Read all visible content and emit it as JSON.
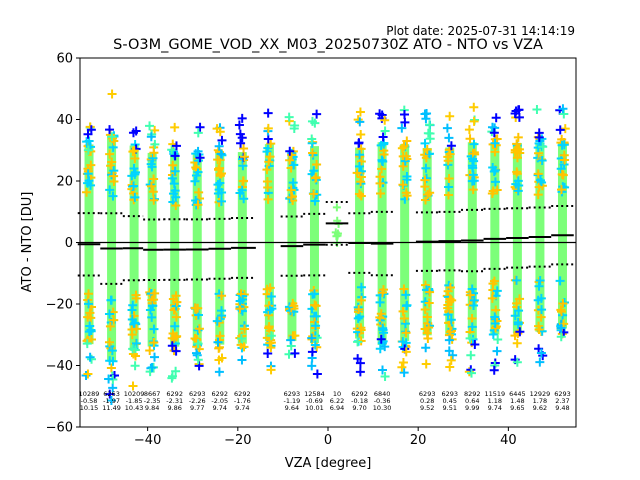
{
  "chart_data": {
    "type": "scatter",
    "plot_date": "Plot date: 2025-07-31 14:14:19",
    "title": "S-O3M_GOME_VOD_XX_M03_20250730Z ATO - NTO vs VZA",
    "xlabel": "VZA [degree]",
    "ylabel": "ATO - NTO [DU]",
    "xlim": [
      -55,
      55
    ],
    "ylim": [
      -60,
      60
    ],
    "xticks": [
      -40,
      -20,
      0,
      20,
      40
    ],
    "yticks": [
      -60,
      -40,
      -20,
      0,
      20,
      40,
      60
    ],
    "grid": false,
    "bins": [
      {
        "x": -53,
        "n": "10289",
        "mean": "-0.58",
        "std": "10.15"
      },
      {
        "x": -48,
        "n": "6263",
        "mean": "-1.97",
        "std": "11.49"
      },
      {
        "x": -43,
        "n": "10209",
        "mean": "-1.85",
        "std": "10.43"
      },
      {
        "x": -39,
        "n": "8667",
        "mean": "-2.35",
        "std": "9.84"
      },
      {
        "x": -34,
        "n": "6292",
        "mean": "-2.31",
        "std": "9.86"
      },
      {
        "x": -29,
        "n": "6293",
        "mean": "-2.26",
        "std": "9.77"
      },
      {
        "x": -24,
        "n": "6292",
        "mean": "-2.05",
        "std": "9.74"
      },
      {
        "x": -19,
        "n": "6292",
        "mean": "-1.76",
        "std": "9.74"
      },
      {
        "x": -13,
        "n": "",
        "mean": "",
        "std": ""
      },
      {
        "x": -8,
        "n": "6293",
        "mean": "-1.19",
        "std": "9.64"
      },
      {
        "x": -3,
        "n": "12584",
        "mean": "-0.69",
        "std": "10.01"
      },
      {
        "x": 2,
        "n": "10",
        "mean": "6.22",
        "std": "6.94"
      },
      {
        "x": 7,
        "n": "6292",
        "mean": "-0.18",
        "std": "9.70"
      },
      {
        "x": 12,
        "n": "6840",
        "mean": "-0.36",
        "std": "10.30"
      },
      {
        "x": 17,
        "n": "",
        "mean": "",
        "std": ""
      },
      {
        "x": 22,
        "n": "6293",
        "mean": "0.28",
        "std": "9.52"
      },
      {
        "x": 27,
        "n": "6293",
        "mean": "0.45",
        "std": "9.51"
      },
      {
        "x": 32,
        "n": "8292",
        "mean": "0.64",
        "std": "9.99"
      },
      {
        "x": 37,
        "n": "11519",
        "mean": "1.18",
        "std": "9.74"
      },
      {
        "x": 42,
        "n": "6445",
        "mean": "1.48",
        "std": "9.65"
      },
      {
        "x": 47,
        "n": "12929",
        "mean": "1.78",
        "std": "9.62"
      },
      {
        "x": 52,
        "n": "6293",
        "mean": "2.37",
        "std": "9.48"
      }
    ],
    "series": [
      {
        "role": "mean",
        "color": "#000000",
        "style": "solid",
        "values": "mean per bin"
      },
      {
        "role": "mean_plus_std",
        "color": "#000000",
        "style": "dotted"
      },
      {
        "role": "mean_minus_std",
        "color": "#000000",
        "style": "dotted"
      }
    ],
    "colors": {
      "density_low": "#0000ff",
      "density_mid_low": "#00d4ff",
      "density_mid": "#7cff79",
      "density_mid_high": "#ffc400",
      "scatter_extremes": [
        "#0000ff",
        "#00bfff",
        "#40ffb0",
        "#ffcc00"
      ]
    }
  }
}
